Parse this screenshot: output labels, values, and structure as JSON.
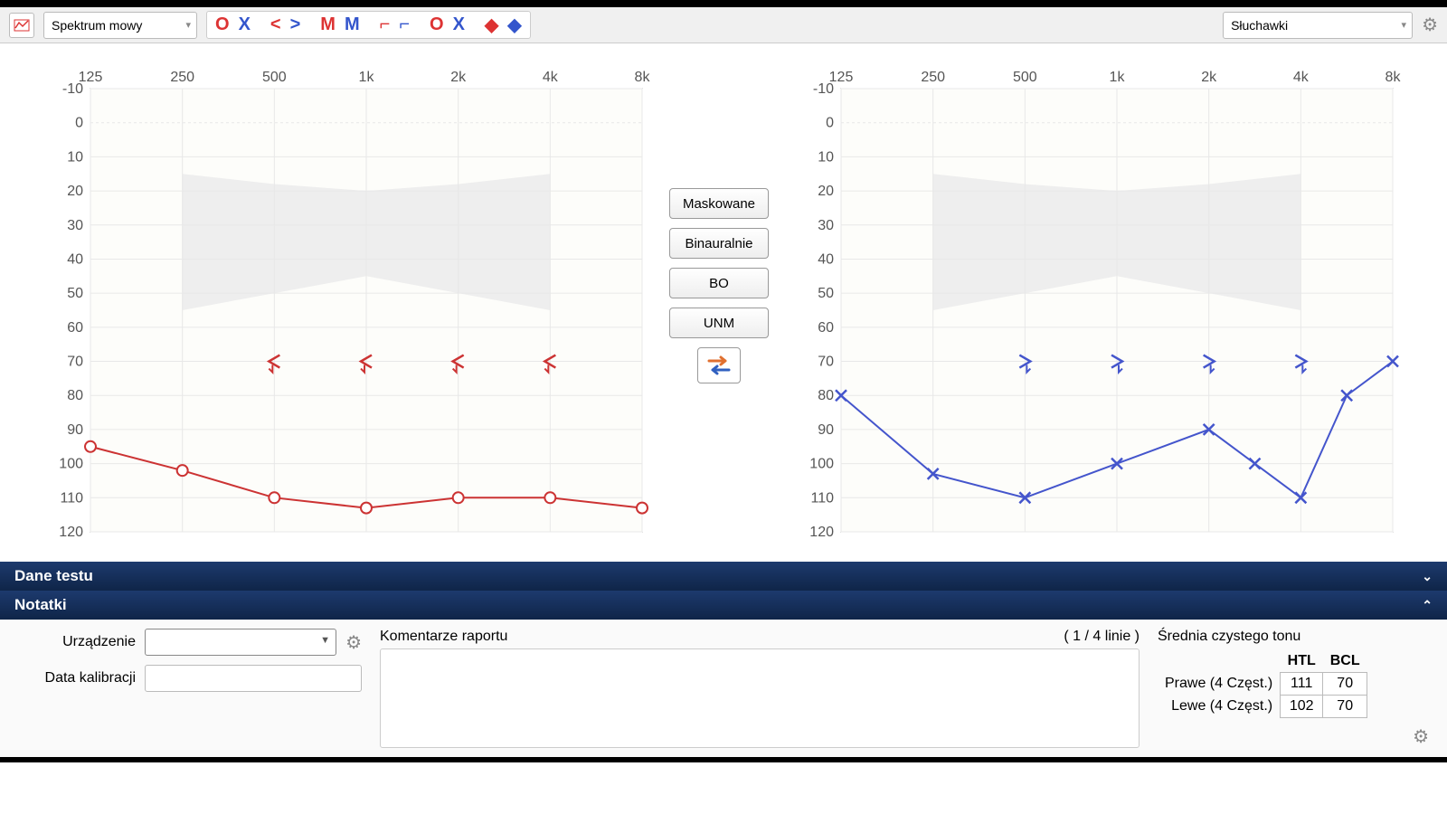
{
  "toolbar": {
    "mode_dropdown": "Spektrum mowy",
    "output_dropdown": "Słuchawki"
  },
  "center_buttons": {
    "masked": "Maskowane",
    "binaural": "Binauralnie",
    "bo": "BO",
    "unm": "UNM"
  },
  "audiogram": {
    "x_ticks": [
      "125",
      "250",
      "500",
      "1k",
      "2k",
      "4k",
      "8k"
    ],
    "y_ticks": [
      -10,
      0,
      10,
      20,
      30,
      40,
      50,
      60,
      70,
      80,
      90,
      100,
      110,
      120
    ],
    "ylim": [
      -10,
      120
    ],
    "grid_color": "#e8e8e8",
    "axis_text_color": "#555555",
    "banana_color": "#eeeeee",
    "right": {
      "color": "#cc3333",
      "htl_marker": "circle",
      "htl": [
        {
          "f": "125",
          "db": 95
        },
        {
          "f": "250",
          "db": 102
        },
        {
          "f": "500",
          "db": 110
        },
        {
          "f": "1k",
          "db": 113
        },
        {
          "f": "2k",
          "db": 110
        },
        {
          "f": "4k",
          "db": 110
        },
        {
          "f": "8k",
          "db": 113
        }
      ],
      "bcl_marker": "less-arrow",
      "bcl": [
        {
          "f": "500",
          "db": 70
        },
        {
          "f": "1k",
          "db": 70
        },
        {
          "f": "2k",
          "db": 70
        },
        {
          "f": "4k",
          "db": 70
        }
      ]
    },
    "left": {
      "color": "#4455cc",
      "htl_marker": "x",
      "htl": [
        {
          "f": "125",
          "db": 80
        },
        {
          "f": "250",
          "db": 103
        },
        {
          "f": "500",
          "db": 110
        },
        {
          "f": "1k",
          "db": 100
        },
        {
          "f": "2k",
          "db": 90
        },
        {
          "f": "2.8k",
          "db": 100
        },
        {
          "f": "4k",
          "db": 110
        },
        {
          "f": "5.6k",
          "db": 80
        },
        {
          "f": "8k",
          "db": 70
        }
      ],
      "bcl_marker": "greater-arrow",
      "bcl": [
        {
          "f": "500",
          "db": 70
        },
        {
          "f": "1k",
          "db": 70
        },
        {
          "f": "2k",
          "db": 70
        },
        {
          "f": "4k",
          "db": 70
        }
      ]
    }
  },
  "sections": {
    "test_data": "Dane testu",
    "notes": "Notatki"
  },
  "notes_panel": {
    "device_label": "Urządzenie",
    "calibration_label": "Data kalibracji",
    "comments_label": "Komentarze raportu",
    "comments_count": "( 1 / 4 linie )"
  },
  "pta": {
    "title": "Średnia czystego tonu",
    "col_htl": "HTL",
    "col_bcl": "BCL",
    "right_label": "Prawe (4 Częst.)",
    "left_label": "Lewe (4 Częst.)",
    "right_htl": "111",
    "right_bcl": "70",
    "left_htl": "102",
    "left_bcl": "70"
  }
}
